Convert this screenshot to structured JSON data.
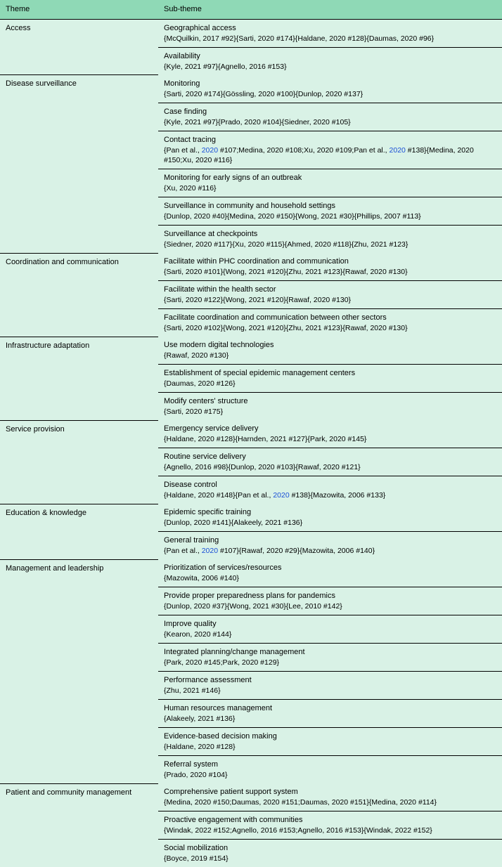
{
  "colors": {
    "header_bg": "#8fd9b6",
    "body_bg": "#d9f2e6",
    "link": "#1a4fd6",
    "border": "#000000"
  },
  "table": {
    "headers": [
      "Theme",
      "Sub-theme"
    ],
    "themes": [
      {
        "name": "Access",
        "subs": [
          {
            "title": "Geographical access",
            "refs": "{McQuilkin, 2017 #92}{Sarti, 2020 #174}{Haldane, 2020 #128}{Daumas, 2020 #96}"
          },
          {
            "title": "Availability",
            "refs": "{Kyle, 2021 #97}{Agnello, 2016 #153}"
          }
        ]
      },
      {
        "name": "Disease surveillance",
        "subs": [
          {
            "title": "Monitoring",
            "refs": "{Sarti, 2020 #174}{Gössling, 2020 #100}{Dunlop, 2020 #137}"
          },
          {
            "title": "Case finding",
            "refs": "{Kyle, 2021 #97}{Prado, 2020 #104}{Siedner, 2020 #105}"
          },
          {
            "title": "Contact tracing",
            "refs": "{Pan et al., <a>2020</a> #107;Medina, 2020 #108;Xu, 2020 #109;Pan et al., <a>2020</a> #138}{Medina, 2020 #150;Xu, 2020 #116}"
          },
          {
            "title": "Monitoring for early signs of an outbreak",
            "refs": "{Xu, 2020 #116}"
          },
          {
            "title": "Surveillance in community and household settings",
            "refs": "{Dunlop, 2020 #40}{Medina, 2020 #150}{Wong, 2021 #30}{Phillips, 2007 #113}"
          },
          {
            "title": "Surveillance at checkpoints",
            "refs": "{Siedner, 2020 #117}{Xu, 2020 #115}{Ahmed, 2020 #118}{Zhu, 2021 #123}"
          }
        ]
      },
      {
        "name": "Coordination and communication",
        "subs": [
          {
            "title": "Facilitate within PHC coordination and communication",
            "refs": "{Sarti, 2020 #101}{Wong, 2021 #120}{Zhu, 2021 #123}{Rawaf, 2020 #130}"
          },
          {
            "title": "Facilitate within the health sector",
            "refs": "{Sarti, 2020 #122}{Wong, 2021 #120}{Rawaf, 2020 #130}"
          },
          {
            "title": "Facilitate coordination and communication between other sectors",
            "refs": "{Sarti, 2020 #102}{Wong, 2021 #120}{Zhu, 2021 #123}{Rawaf, 2020 #130}"
          }
        ]
      },
      {
        "name": "Infrastructure adaptation",
        "subs": [
          {
            "title": "Use modern digital technologies",
            "refs": "{Rawaf, 2020 #130}"
          },
          {
            "title": "Establishment of special epidemic management centers",
            "refs": "{Daumas, 2020 #126}"
          },
          {
            "title": "Modify centers' structure",
            "refs": "{Sarti, 2020 #175}"
          }
        ]
      },
      {
        "name": "Service provision",
        "subs": [
          {
            "title": "Emergency service delivery",
            "refs": "{Haldane, 2020 #128}{Harnden, 2021 #127}{Park, 2020 #145}"
          },
          {
            "title": "Routine service delivery",
            "refs": "{Agnello, 2016 #98}{Dunlop, 2020 #103}{Rawaf, 2020 #121}"
          },
          {
            "title": "Disease control",
            "refs": "{Haldane, 2020 #148}{Pan et al., <a>2020</a> #138}{Mazowita, 2006 #133}"
          }
        ]
      },
      {
        "name": "Education & knowledge",
        "subs": [
          {
            "title": "Epidemic specific training",
            "refs": "{Dunlop, 2020 #141}{Alakeely, 2021 #136}"
          },
          {
            "title": "General training",
            "refs": "{Pan et al., <a>2020</a> #107}{Rawaf, 2020 #29}{Mazowita, 2006 #140}"
          }
        ]
      },
      {
        "name": "Management and leadership",
        "subs": [
          {
            "title": "Prioritization of services/resources",
            "refs": "{Mazowita, 2006 #140}"
          },
          {
            "title": "Provide proper preparedness plans for pandemics",
            "refs": "{Dunlop, 2020 #37}{Wong, 2021 #30}{Lee, 2010 #142}"
          },
          {
            "title": "Improve quality",
            "refs": "{Kearon, 2020 #144}"
          },
          {
            "title": "Integrated planning/change management",
            "refs": "{Park, 2020 #145;Park, 2020 #129}"
          },
          {
            "title": "Performance assessment",
            "refs": "{Zhu, 2021 #146}"
          },
          {
            "title": "Human resources management",
            "refs": "{Alakeely, 2021 #136}"
          },
          {
            "title": "Evidence-based decision making",
            "refs": "{Haldane, 2020 #128}"
          },
          {
            "title": "Referral system",
            "refs": "{Prado, 2020 #104}"
          }
        ]
      },
      {
        "name": "Patient and community management",
        "subs": [
          {
            "title": "Comprehensive patient support system",
            "refs": "{Medina, 2020 #150;Daumas, 2020 #151;Daumas, 2020 #151}{Medina, 2020 #114}"
          },
          {
            "title": "Proactive engagement with communities",
            "refs": "{Windak, 2022 #152;Agnello, 2016 #153;Agnello, 2016 #153}{Windak, 2022 #152}"
          },
          {
            "title": "Social mobilization",
            "refs": "{Boyce, 2019 #154}"
          }
        ]
      }
    ]
  }
}
